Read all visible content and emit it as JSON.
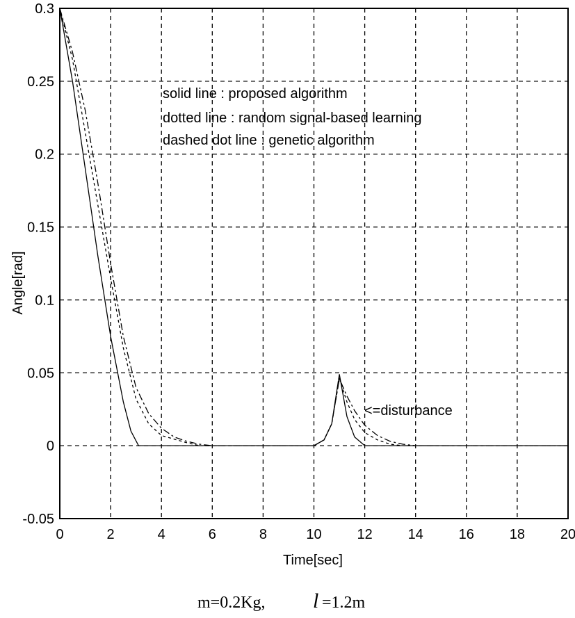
{
  "chart_data": {
    "type": "line",
    "xlabel": "Time[sec]",
    "ylabel": "Angle[rad]",
    "xlim": [
      0,
      20
    ],
    "ylim": [
      -0.05,
      0.3
    ],
    "xticks": [
      0,
      2,
      4,
      6,
      8,
      10,
      12,
      14,
      16,
      18,
      20
    ],
    "yticks": [
      -0.05,
      0,
      0.05,
      0.1,
      0.15,
      0.2,
      0.25,
      0.3
    ],
    "ytick_labels": [
      "-0.05",
      "0",
      "0.05",
      "0.1",
      "0.15",
      "0.2",
      "0.25",
      "0.3"
    ],
    "grid": true,
    "legend_lines": [
      "solid line : proposed algorithm",
      "dotted line : random signal-based learning",
      "dashed dot line : genetic algorithm"
    ],
    "annotation": "<=disturbance",
    "series": [
      {
        "style": "solid",
        "x": [
          0,
          0.5,
          1.0,
          1.5,
          2.0,
          2.5,
          2.8,
          3.1,
          4,
          6,
          8,
          10.0,
          10.4,
          10.7,
          11.0,
          11.3,
          11.6,
          12.0,
          14,
          16,
          18,
          20
        ],
        "y": [
          0.3,
          0.25,
          0.19,
          0.13,
          0.075,
          0.03,
          0.01,
          0.0,
          0.0,
          0.0,
          0.0,
          0.0,
          0.004,
          0.015,
          0.049,
          0.02,
          0.006,
          0.0,
          0.0,
          0.0,
          0.0,
          0.0
        ]
      },
      {
        "style": "dotted",
        "x": [
          0,
          0.5,
          1.0,
          1.5,
          2.0,
          2.5,
          3.0,
          3.5,
          4.0,
          5.0,
          5.5,
          6,
          8,
          10.0,
          10.4,
          10.7,
          11.0,
          11.3,
          11.6,
          12.0,
          12.5,
          13.0,
          13.5,
          14,
          16,
          18,
          20
        ],
        "y": [
          0.3,
          0.265,
          0.215,
          0.165,
          0.115,
          0.067,
          0.032,
          0.015,
          0.007,
          0.002,
          0.0,
          0.0,
          0.0,
          0.0,
          0.004,
          0.015,
          0.046,
          0.03,
          0.018,
          0.009,
          0.004,
          0.001,
          0.0,
          0.0,
          0.0,
          0.0,
          0.0
        ]
      },
      {
        "style": "dashdot",
        "x": [
          0,
          0.5,
          1.0,
          1.5,
          2.0,
          2.5,
          3.0,
          3.5,
          4.0,
          4.5,
          5.0,
          5.5,
          6,
          8,
          10.0,
          10.4,
          10.7,
          11.0,
          11.3,
          11.6,
          12.0,
          12.5,
          13.0,
          13.5,
          14,
          16,
          18,
          20
        ],
        "y": [
          0.3,
          0.27,
          0.23,
          0.18,
          0.125,
          0.075,
          0.04,
          0.022,
          0.012,
          0.006,
          0.003,
          0.001,
          0.0,
          0.0,
          0.0,
          0.004,
          0.015,
          0.046,
          0.034,
          0.024,
          0.014,
          0.007,
          0.003,
          0.001,
          0.0,
          0.0,
          0.0,
          0.0
        ]
      }
    ]
  },
  "caption": {
    "m_text": "m=0.2Kg,",
    "l_symbol": "l",
    "l_text": "=1.2m"
  }
}
